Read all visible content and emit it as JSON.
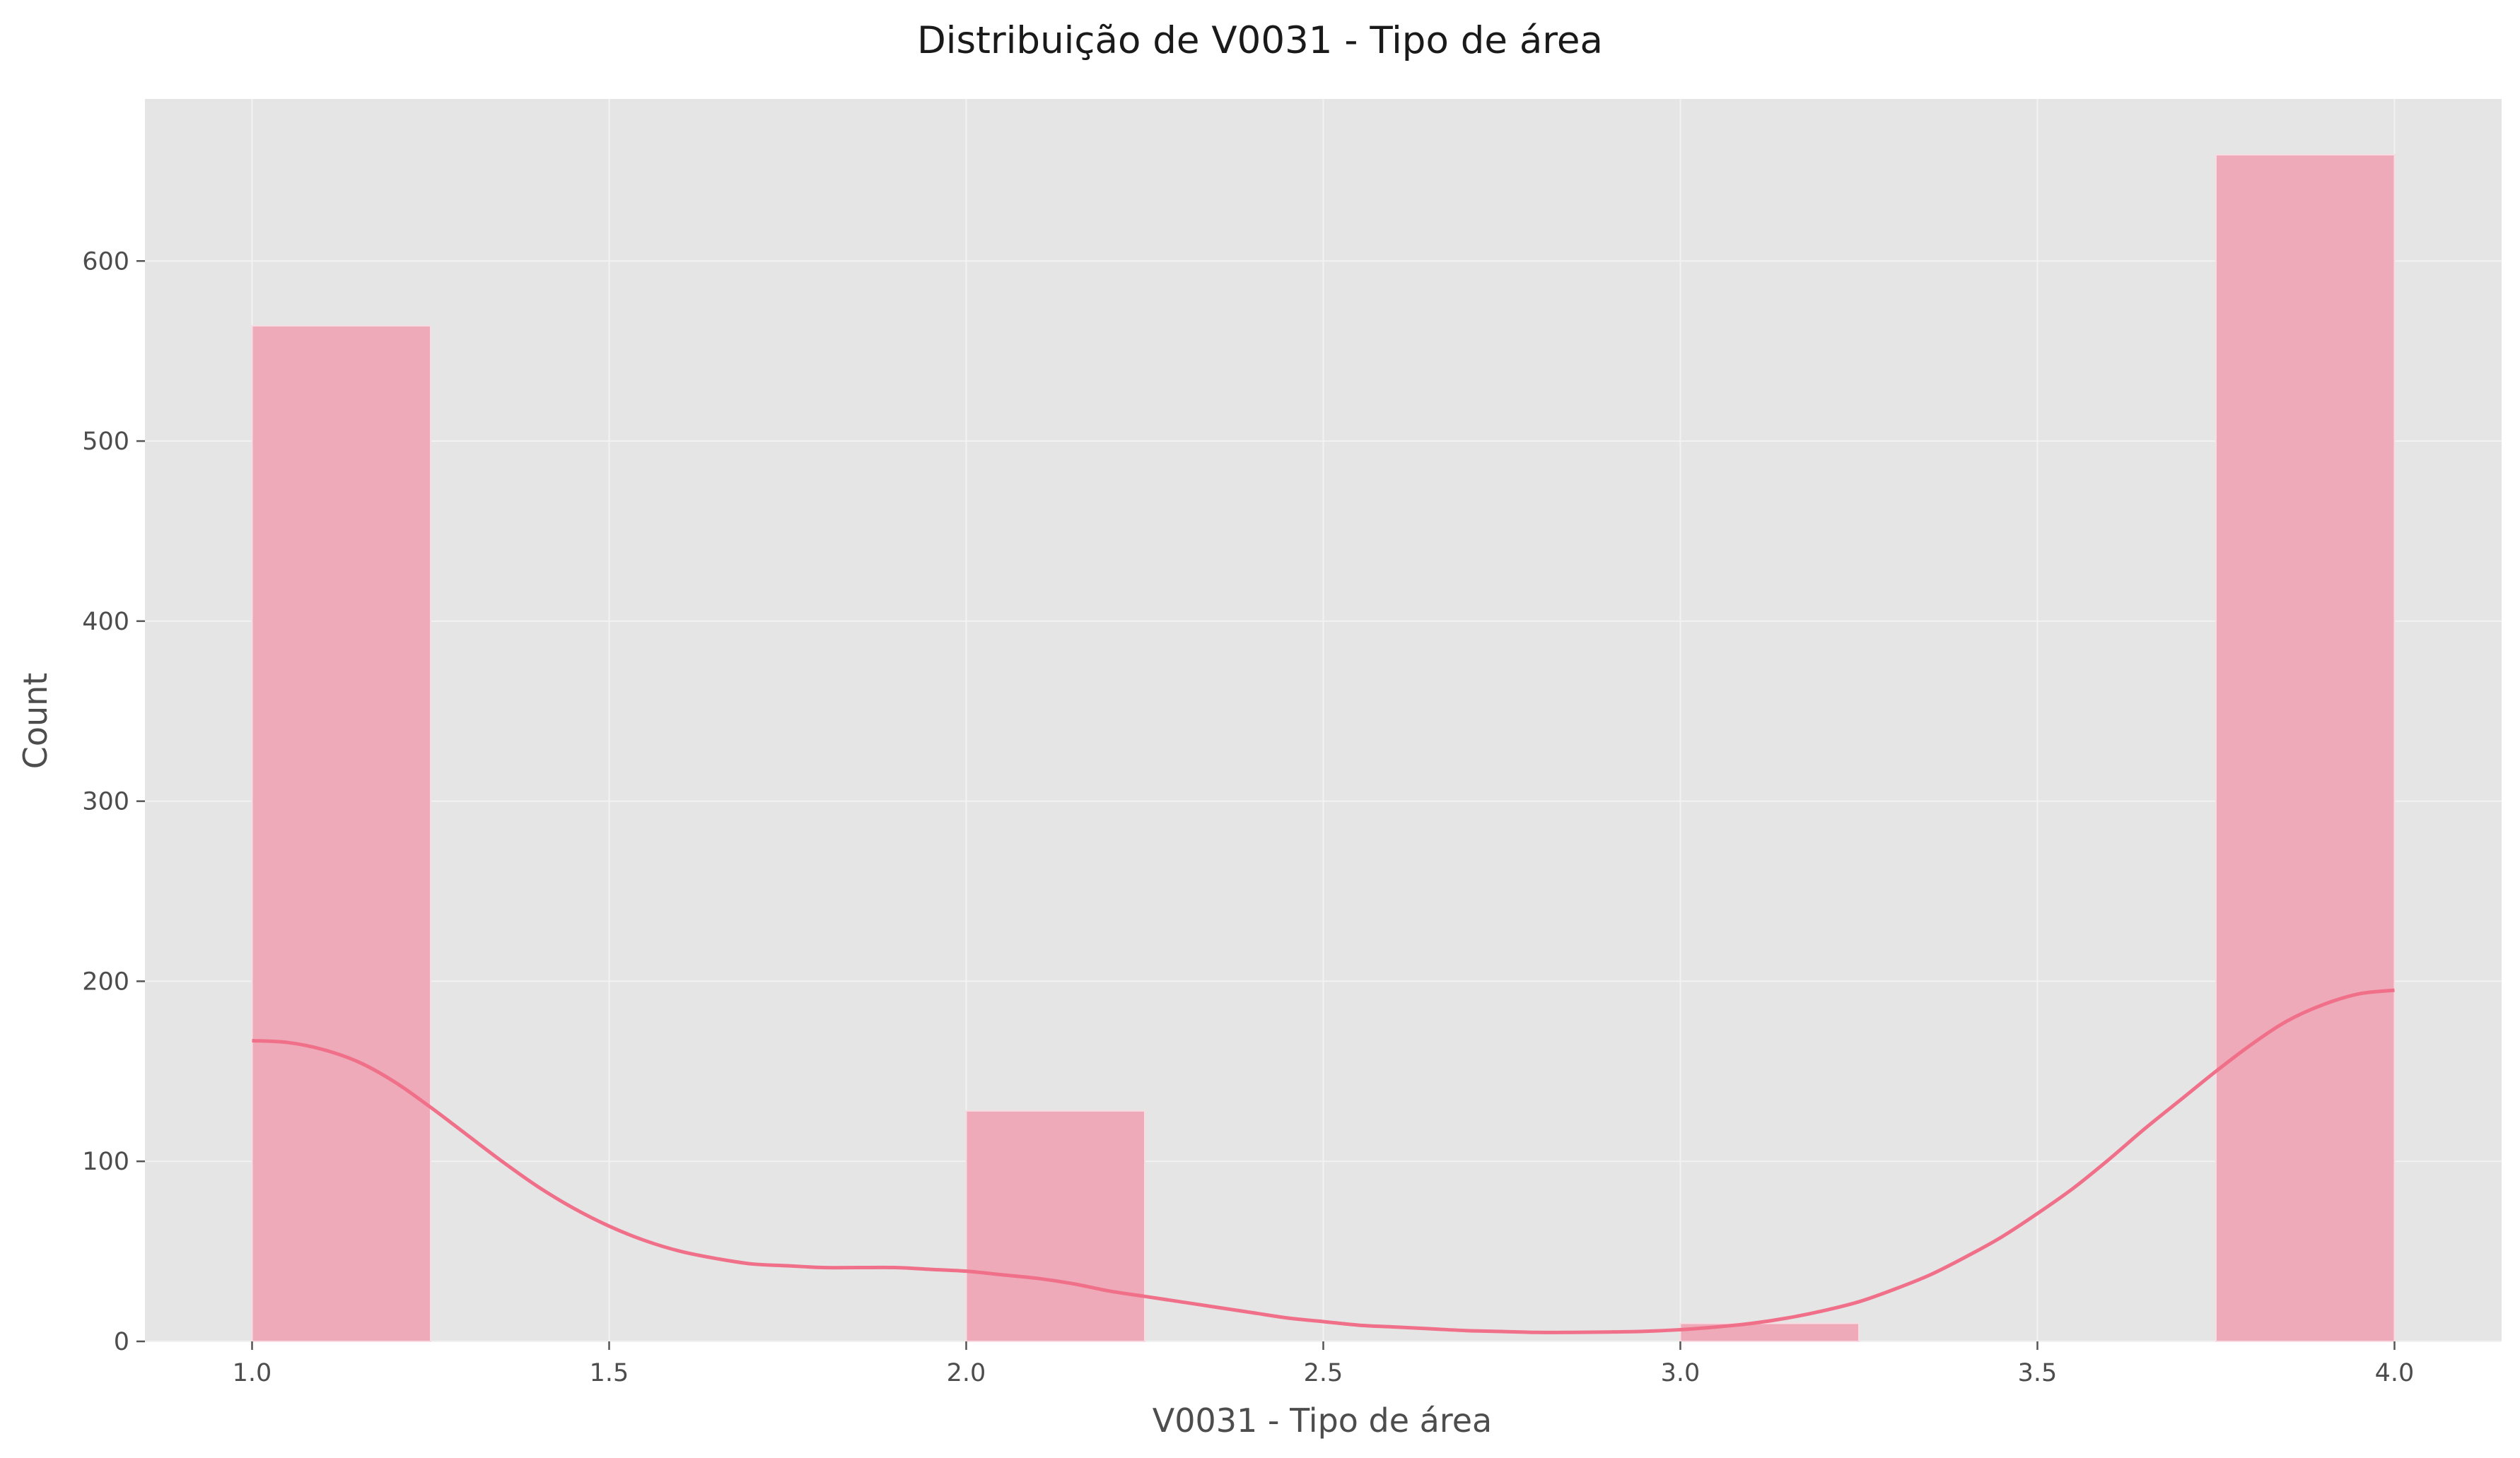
{
  "chart_data": {
    "type": "bar",
    "title": "Distribuição de V0031 - Tipo de área",
    "xlabel": "V0031 - Tipo de área",
    "ylabel": "Count",
    "xlim": [
      0.85,
      4.15
    ],
    "ylim": [
      0,
      690
    ],
    "grid": true,
    "x_ticks": [
      1.0,
      1.5,
      2.0,
      2.5,
      3.0,
      3.5,
      4.0
    ],
    "x_tick_labels": [
      "1.0",
      "1.5",
      "2.0",
      "2.5",
      "3.0",
      "3.5",
      "4.0"
    ],
    "y_ticks": [
      0,
      100,
      200,
      300,
      400,
      500,
      600
    ],
    "y_tick_labels": [
      "0",
      "100",
      "200",
      "300",
      "400",
      "500",
      "600"
    ],
    "bins": [
      {
        "x0": 1.0,
        "x1": 1.25,
        "count": 564
      },
      {
        "x0": 1.25,
        "x1": 1.5,
        "count": 0
      },
      {
        "x0": 1.5,
        "x1": 1.75,
        "count": 0
      },
      {
        "x0": 1.75,
        "x1": 2.0,
        "count": 0
      },
      {
        "x0": 2.0,
        "x1": 2.25,
        "count": 128
      },
      {
        "x0": 2.25,
        "x1": 2.5,
        "count": 0
      },
      {
        "x0": 2.5,
        "x1": 2.75,
        "count": 0
      },
      {
        "x0": 2.75,
        "x1": 3.0,
        "count": 0
      },
      {
        "x0": 3.0,
        "x1": 3.25,
        "count": 10
      },
      {
        "x0": 3.25,
        "x1": 3.5,
        "count": 0
      },
      {
        "x0": 3.5,
        "x1": 3.75,
        "count": 0
      },
      {
        "x0": 3.75,
        "x1": 4.0,
        "count": 659
      }
    ],
    "kde": {
      "x": [
        1.0,
        1.05,
        1.1,
        1.15,
        1.2,
        1.25,
        1.3,
        1.35,
        1.4,
        1.45,
        1.5,
        1.55,
        1.6,
        1.65,
        1.7,
        1.75,
        1.8,
        1.85,
        1.9,
        1.95,
        2.0,
        2.05,
        2.1,
        2.15,
        2.2,
        2.25,
        2.3,
        2.35,
        2.4,
        2.45,
        2.5,
        2.55,
        2.6,
        2.65,
        2.7,
        2.75,
        2.8,
        2.85,
        2.9,
        2.95,
        3.0,
        3.05,
        3.1,
        3.15,
        3.2,
        3.25,
        3.3,
        3.35,
        3.4,
        3.45,
        3.5,
        3.55,
        3.6,
        3.65,
        3.7,
        3.75,
        3.8,
        3.85,
        3.9,
        3.95,
        4.0
      ],
      "y": [
        167,
        166,
        162,
        155,
        144,
        130,
        115,
        100,
        86,
        74,
        64,
        56,
        50,
        46,
        43,
        42,
        41,
        41,
        41,
        40,
        39,
        37,
        35,
        32,
        28,
        25,
        22,
        19,
        16,
        13,
        11,
        9,
        8,
        7,
        6,
        5.5,
        5,
        5,
        5.2,
        5.6,
        6.5,
        8,
        10,
        13,
        17,
        22,
        29,
        37,
        47,
        58,
        71,
        85,
        101,
        118,
        134,
        150,
        165,
        178,
        187,
        193,
        195
      ]
    },
    "colors": {
      "bar_fill": "#eeaab8",
      "bar_edge": "#f7dde3",
      "kde_line": "#f0708a",
      "plot_background": "#e5e5e5",
      "grid": "#f2f2f2"
    }
  }
}
